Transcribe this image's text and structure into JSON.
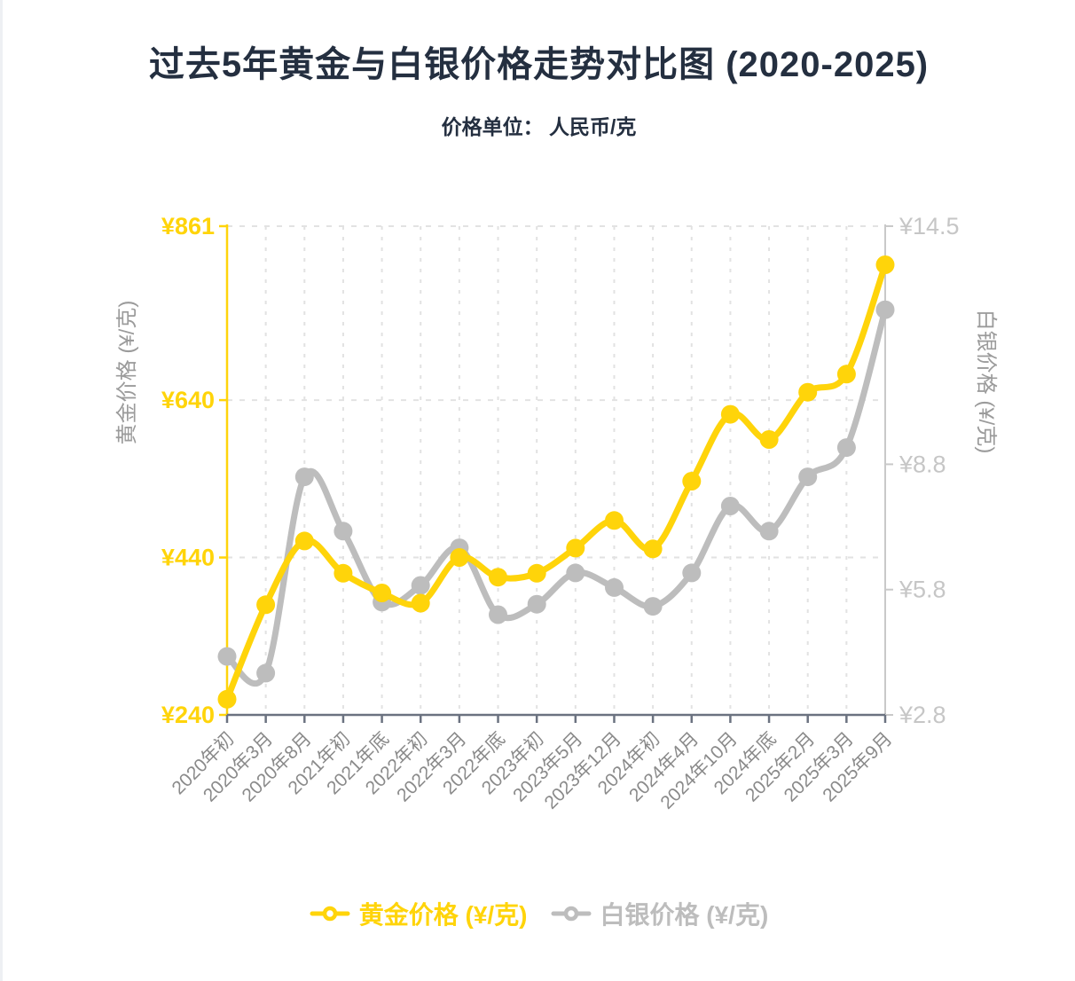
{
  "page": {
    "title": "过去5年黄金与白银价格走势对比图 (2020-2025)",
    "subtitle": "价格单位： 人民币/克"
  },
  "colors": {
    "title": "#242f40",
    "gold": "#FFD40A",
    "silver": "#BDBDBD",
    "silver_axis": "#C9C9C9",
    "silver_tick_label": "#C6C6C6",
    "axis_title": "#9B9B9B",
    "x_axis": "#6B7280",
    "x_tick_label": "#8A8A8A",
    "grid": "#E2E2E2",
    "background": "#FFFFFF"
  },
  "chart_data": {
    "type": "line",
    "title": "过去5年黄金与白银价格走势对比图 (2020-2025)",
    "subtitle": "价格单位： 人民币/克",
    "grid": "dashed",
    "legend_position": "bottom",
    "categories": [
      "2020年初",
      "2020年3月",
      "2020年8月",
      "2021年初",
      "2021年底",
      "2022年初",
      "2022年3月",
      "2022年底",
      "2023年初",
      "2023年5月",
      "2023年12月",
      "2024年初",
      "2024年4月",
      "2024年10月",
      "2024年底",
      "2025年2月",
      "2025年3月",
      "2025年9月"
    ],
    "series": [
      {
        "key": "gold",
        "name": "黄金价格 (¥/克)",
        "axis": "left",
        "color": "#FFD40A",
        "values": [
          260,
          380,
          461,
          420,
          395,
          382,
          440,
          415,
          420,
          452,
          487,
          451,
          537,
          622,
          590,
          650,
          673,
          812
        ]
      },
      {
        "key": "silver",
        "name": "白银价格 (¥/克)",
        "axis": "right",
        "color": "#BDBDBD",
        "values": [
          4.2,
          3.8,
          8.5,
          7.2,
          5.5,
          5.9,
          6.8,
          5.2,
          5.45,
          6.2,
          5.85,
          5.4,
          6.2,
          7.8,
          7.2,
          8.5,
          9.2,
          12.5
        ]
      }
    ],
    "left_axis": {
      "label": "黄金价格 (¥/克)",
      "min": 240,
      "max": 861,
      "ticks": [
        240,
        440,
        640,
        861
      ],
      "tick_labels": [
        "¥240",
        "¥440",
        "¥640",
        "¥861"
      ]
    },
    "right_axis": {
      "label": "白银价格 (¥/克)",
      "min": 2.8,
      "max": 14.5,
      "ticks": [
        2.8,
        5.8,
        8.8,
        14.5
      ],
      "tick_labels": [
        "¥2.8",
        "¥5.8",
        "¥8.8",
        "¥14.5"
      ]
    }
  }
}
